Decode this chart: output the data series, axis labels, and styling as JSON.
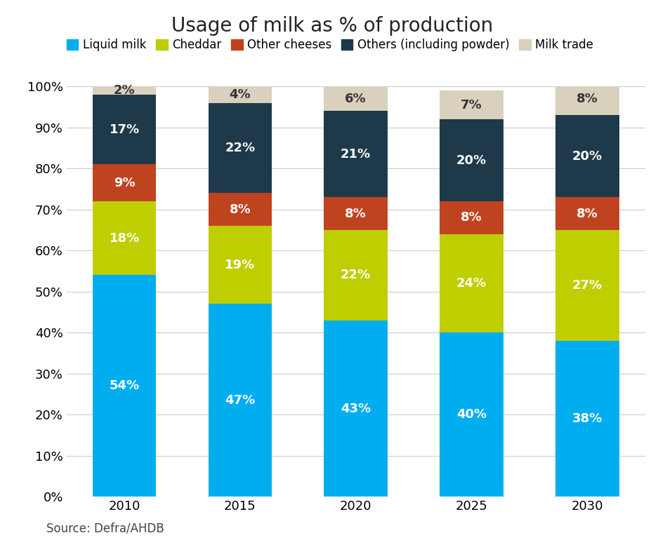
{
  "title": "Usage of milk as % of production",
  "categories": [
    "2010",
    "2015",
    "2020",
    "2025",
    "2030"
  ],
  "series": [
    {
      "name": "Liquid milk",
      "values": [
        54,
        47,
        43,
        40,
        38
      ],
      "color": "#00AEEF",
      "text_color": "white"
    },
    {
      "name": "Cheddar",
      "values": [
        18,
        19,
        22,
        24,
        27
      ],
      "color": "#BFCE00",
      "text_color": "white"
    },
    {
      "name": "Other cheeses",
      "values": [
        9,
        8,
        8,
        8,
        8
      ],
      "color": "#C0431F",
      "text_color": "white"
    },
    {
      "name": "Others (including powder)",
      "values": [
        17,
        22,
        21,
        20,
        20
      ],
      "color": "#1E3A4A",
      "text_color": "white"
    },
    {
      "name": "Milk trade",
      "values": [
        2,
        4,
        6,
        7,
        8
      ],
      "color": "#D9D0BE",
      "text_color": "#333333"
    }
  ],
  "ylim": [
    0,
    100
  ],
  "source_text": "Source: Defra/AHDB",
  "background_color": "#ffffff",
  "bar_width": 0.55,
  "title_fontsize": 20,
  "label_fontsize": 13,
  "tick_fontsize": 13,
  "legend_fontsize": 12,
  "source_fontsize": 12
}
